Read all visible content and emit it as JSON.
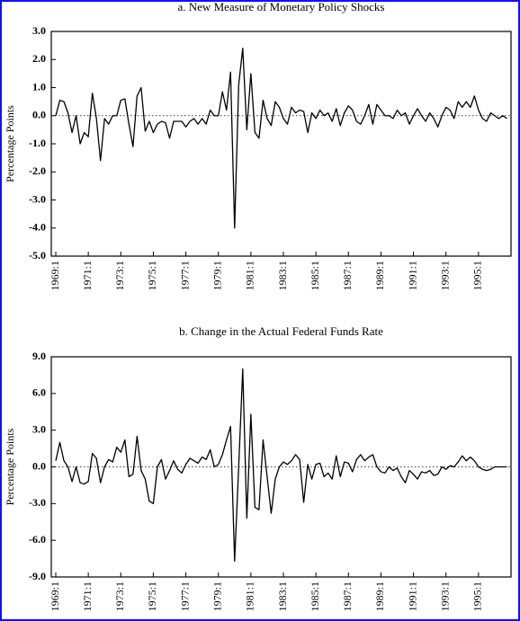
{
  "chart_data": [
    {
      "type": "line",
      "title": "a.  New Measure of Monetary Policy Shocks",
      "y_label": "Percentage Points",
      "color": "#000000",
      "categories": [
        "1969:1",
        null,
        null,
        null,
        null,
        null,
        null,
        null,
        "1971:1",
        null,
        null,
        null,
        null,
        null,
        null,
        null,
        "1973:1",
        null,
        null,
        null,
        null,
        null,
        null,
        null,
        "1975:1",
        null,
        null,
        null,
        null,
        null,
        null,
        null,
        "1977:1",
        null,
        null,
        null,
        null,
        null,
        null,
        null,
        "1979:1",
        null,
        null,
        null,
        null,
        null,
        null,
        null,
        "1981:1",
        null,
        null,
        null,
        null,
        null,
        null,
        null,
        "1983:1",
        null,
        null,
        null,
        null,
        null,
        null,
        null,
        "1985:1",
        null,
        null,
        null,
        null,
        null,
        null,
        null,
        "1987:1",
        null,
        null,
        null,
        null,
        null,
        null,
        null,
        "1989:1",
        null,
        null,
        null,
        null,
        null,
        null,
        null,
        "1991:1",
        null,
        null,
        null,
        null,
        null,
        null,
        null,
        "1993:1",
        null,
        null,
        null,
        null,
        null,
        null,
        null,
        "1995:1",
        null,
        null,
        null,
        null,
        null,
        null,
        null
      ],
      "values": [
        0.0,
        0.55,
        0.5,
        0.1,
        -0.6,
        0.0,
        -1.0,
        -0.6,
        -0.75,
        0.8,
        -0.1,
        -1.6,
        -0.1,
        -0.3,
        0.0,
        0.0,
        0.55,
        0.6,
        -0.3,
        -1.1,
        0.7,
        1.0,
        -0.55,
        -0.2,
        -0.6,
        -0.3,
        -0.2,
        -0.25,
        -0.8,
        -0.2,
        -0.2,
        -0.2,
        -0.4,
        -0.2,
        -0.1,
        -0.3,
        -0.1,
        -0.3,
        0.2,
        0.0,
        0.0,
        0.85,
        0.2,
        1.55,
        -4.0,
        1.1,
        2.4,
        -0.5,
        1.5,
        -0.6,
        -0.8,
        0.55,
        -0.1,
        -0.35,
        0.5,
        0.3,
        -0.1,
        -0.3,
        0.3,
        0.1,
        0.2,
        0.15,
        -0.6,
        0.1,
        -0.1,
        0.2,
        0.0,
        0.1,
        -0.2,
        0.25,
        -0.35,
        0.1,
        0.35,
        0.2,
        -0.2,
        -0.3,
        0.0,
        0.4,
        -0.3,
        0.4,
        0.2,
        0.0,
        0.0,
        -0.1,
        0.2,
        0.0,
        0.1,
        -0.3,
        0.0,
        0.25,
        0.0,
        -0.2,
        0.1,
        -0.1,
        -0.4,
        0.0,
        0.3,
        0.2,
        -0.1,
        0.5,
        0.3,
        0.5,
        0.3,
        0.7,
        0.2,
        -0.1,
        -0.2,
        0.1,
        0.0,
        -0.1,
        0.0,
        -0.1
      ],
      "ylim": [
        -5,
        3
      ],
      "yticks": [
        {
          "value": 3,
          "label": "3.0"
        },
        {
          "value": 2,
          "label": "2.0"
        },
        {
          "value": 1,
          "label": "1.0"
        },
        {
          "value": 0,
          "label": "0.0"
        },
        {
          "value": -1,
          "label": "-1.0"
        },
        {
          "value": -2,
          "label": "-2.0"
        },
        {
          "value": -3,
          "label": "-3.0"
        },
        {
          "value": -4,
          "label": "-4.0"
        },
        {
          "value": -5,
          "label": "-5.0"
        }
      ]
    },
    {
      "type": "line",
      "title": "b.  Change in the Actual Federal Funds Rate",
      "y_label": "Percentage Points",
      "color": "#000000",
      "categories": [
        "1969:1",
        null,
        null,
        null,
        null,
        null,
        null,
        null,
        "1971:1",
        null,
        null,
        null,
        null,
        null,
        null,
        null,
        "1973:1",
        null,
        null,
        null,
        null,
        null,
        null,
        null,
        "1975:1",
        null,
        null,
        null,
        null,
        null,
        null,
        null,
        "1977:1",
        null,
        null,
        null,
        null,
        null,
        null,
        null,
        "1979:1",
        null,
        null,
        null,
        null,
        null,
        null,
        null,
        "1981:1",
        null,
        null,
        null,
        null,
        null,
        null,
        null,
        "1983:1",
        null,
        null,
        null,
        null,
        null,
        null,
        null,
        "1985:1",
        null,
        null,
        null,
        null,
        null,
        null,
        null,
        "1987:1",
        null,
        null,
        null,
        null,
        null,
        null,
        null,
        "1989:1",
        null,
        null,
        null,
        null,
        null,
        null,
        null,
        "1991:1",
        null,
        null,
        null,
        null,
        null,
        null,
        null,
        "1993:1",
        null,
        null,
        null,
        null,
        null,
        null,
        null,
        "1995:1",
        null,
        null,
        null,
        null,
        null,
        null,
        null
      ],
      "values": [
        0.5,
        2.0,
        0.5,
        0.0,
        -1.2,
        0.0,
        -1.3,
        -1.4,
        -1.2,
        1.1,
        0.7,
        -1.3,
        0.0,
        0.6,
        0.4,
        1.6,
        1.2,
        2.2,
        -0.8,
        -0.6,
        2.5,
        -0.3,
        -1.0,
        -2.8,
        -3.0,
        0.0,
        0.6,
        -1.0,
        -0.3,
        0.5,
        -0.2,
        -0.5,
        0.2,
        0.7,
        0.5,
        0.3,
        0.8,
        0.6,
        1.4,
        0.0,
        0.2,
        1.0,
        2.2,
        3.3,
        -7.7,
        0.0,
        8.0,
        -4.2,
        4.3,
        -3.3,
        -3.5,
        2.2,
        -0.8,
        -3.8,
        -1.0,
        0.0,
        0.4,
        0.2,
        0.5,
        1.0,
        0.6,
        -2.9,
        0.2,
        -1.0,
        0.2,
        0.3,
        -0.8,
        -0.5,
        -1.0,
        0.9,
        -0.8,
        0.4,
        0.3,
        -0.4,
        0.6,
        1.0,
        0.5,
        0.8,
        1.0,
        0.0,
        -0.4,
        -0.5,
        0.0,
        -0.3,
        -0.1,
        -0.8,
        -1.3,
        -0.3,
        -0.6,
        -1.0,
        -0.4,
        -0.5,
        -0.3,
        -0.7,
        -0.6,
        0.0,
        -0.2,
        0.1,
        0.0,
        0.4,
        0.9,
        0.5,
        0.8,
        0.5,
        0.0,
        -0.2,
        -0.3,
        -0.2,
        0.0,
        0.0,
        0.0,
        0.0
      ],
      "ylim": [
        -9,
        9
      ],
      "yticks": [
        {
          "value": 9,
          "label": "9.0"
        },
        {
          "value": 6,
          "label": "6.0"
        },
        {
          "value": 3,
          "label": "3.0"
        },
        {
          "value": 0,
          "label": "0.0"
        },
        {
          "value": -3,
          "label": "-3.0"
        },
        {
          "value": -6,
          "label": "-6.0"
        },
        {
          "value": -9,
          "label": "-9.0"
        }
      ]
    }
  ]
}
